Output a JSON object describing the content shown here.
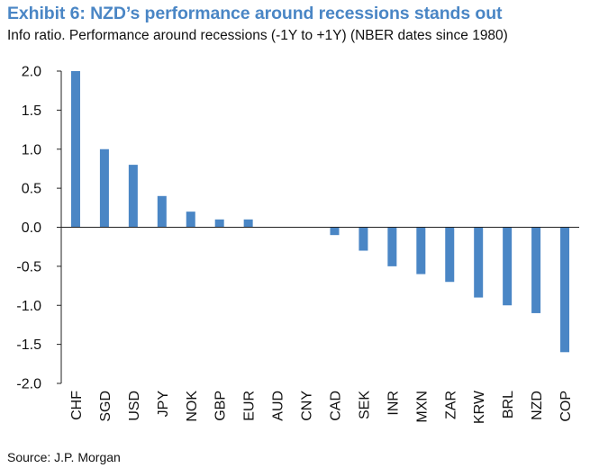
{
  "header": {
    "title": "Exhibit 6: NZD’s performance around recessions stands out",
    "subtitle": "Info ratio. Performance around recessions (-1Y to +1Y) (NBER dates since 1980)"
  },
  "footer": {
    "source": "Source: J.P. Morgan"
  },
  "colors": {
    "accent": "#4a86c5",
    "bar": "#4a86c5",
    "text": "#111111",
    "axis": "#222222"
  },
  "chart_data": {
    "type": "bar",
    "title": "Exhibit 6: NZD’s performance around recessions stands out",
    "subtitle": "Info ratio. Performance around recessions (-1Y to +1Y) (NBER dates since 1980)",
    "xlabel": "",
    "ylabel": "",
    "categories": [
      "CHF",
      "SGD",
      "USD",
      "JPY",
      "NOK",
      "GBP",
      "EUR",
      "AUD",
      "CNY",
      "CAD",
      "SEK",
      "INR",
      "MXN",
      "ZAR",
      "KRW",
      "BRL",
      "NZD",
      "COP"
    ],
    "values": [
      2.0,
      1.0,
      0.8,
      0.4,
      0.2,
      0.1,
      0.1,
      0.0,
      0.0,
      -0.1,
      -0.3,
      -0.5,
      -0.6,
      -0.7,
      -0.9,
      -1.0,
      -1.1,
      -1.6
    ],
    "ylim": [
      -2.0,
      2.0
    ],
    "yticks": [
      "2.0",
      "1.5",
      "1.0",
      "0.5",
      "0.0",
      "-0.5",
      "-1.0",
      "-1.5",
      "-2.0"
    ],
    "ytick_values": [
      2.0,
      1.5,
      1.0,
      0.5,
      0.0,
      -0.5,
      -1.0,
      -1.5,
      -2.0
    ],
    "grid": false,
    "legend": "none"
  }
}
